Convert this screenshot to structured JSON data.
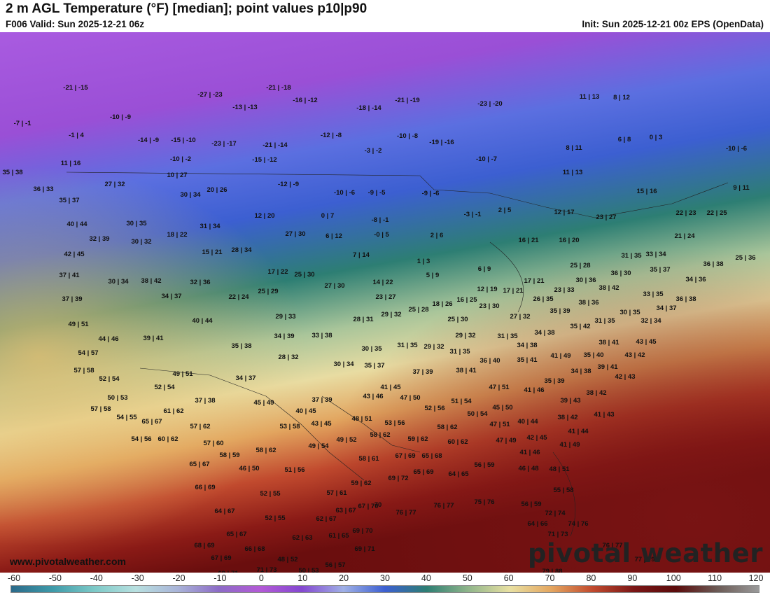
{
  "header": {
    "title": "2 m AGL Temperature (°F) [median]; point values p10|p90",
    "valid": "F006 Valid: Sun 2025-12-21 06z",
    "init": "Init: Sun 2025-12-21 00z EPS (OpenData)"
  },
  "map": {
    "website": "www.pivotalweather.com",
    "logo": "pivotal weather",
    "point_values": [
      [
        "-21 | -15",
        108,
        82
      ],
      [
        "-27 | -23",
        300,
        92
      ],
      [
        "-21 | -18",
        398,
        82
      ],
      [
        "-16 | -12",
        436,
        100
      ],
      [
        "-13 | -13",
        350,
        110
      ],
      [
        "-18 | -14",
        527,
        111
      ],
      [
        "-21 | -19",
        582,
        100
      ],
      [
        "-23 | -20",
        700,
        105
      ],
      [
        "11 | 13",
        842,
        95
      ],
      [
        "8 | 12",
        888,
        96
      ],
      [
        "-7 | -1",
        32,
        133
      ],
      [
        "-10 | -9",
        172,
        124
      ],
      [
        "-1 | 4",
        109,
        150
      ],
      [
        "-14 | -9",
        212,
        157
      ],
      [
        "-15 | -10",
        262,
        157
      ],
      [
        "-23 | -17",
        320,
        162
      ],
      [
        "-21 | -14",
        393,
        164
      ],
      [
        "-12 | -8",
        473,
        150
      ],
      [
        "-10 | -8",
        582,
        151
      ],
      [
        "-19 | -16",
        631,
        160
      ],
      [
        "6 | 8",
        892,
        156
      ],
      [
        "0 | 3",
        937,
        153
      ],
      [
        "-10 | -6",
        1052,
        169
      ],
      [
        "-3 | -2",
        533,
        172
      ],
      [
        "8 | 11",
        820,
        168
      ],
      [
        "-10 | -2",
        258,
        184
      ],
      [
        "-15 | -12",
        378,
        185
      ],
      [
        "-10 | -7",
        695,
        184
      ],
      [
        "11 | 16",
        101,
        190
      ],
      [
        "35 | 38",
        18,
        203
      ],
      [
        "10 | 27",
        253,
        207
      ],
      [
        "11 | 13",
        818,
        203
      ],
      [
        "27 | 32",
        164,
        220
      ],
      [
        "-12 | -9",
        412,
        220
      ],
      [
        "36 | 33",
        62,
        227
      ],
      [
        "20 | 26",
        310,
        228
      ],
      [
        "-10 | -6",
        492,
        232
      ],
      [
        "-9 | -5",
        538,
        232
      ],
      [
        "-9 | -6",
        615,
        233
      ],
      [
        "15 | 16",
        924,
        230
      ],
      [
        "9 | 11",
        1059,
        225
      ],
      [
        "30 | 34",
        272,
        235
      ],
      [
        "35 | 37",
        99,
        243
      ],
      [
        "2 | 5",
        721,
        257
      ],
      [
        "12 | 17",
        806,
        260
      ],
      [
        "22 | 23",
        980,
        261
      ],
      [
        "22 | 25",
        1024,
        261
      ],
      [
        "-3 | -1",
        675,
        263
      ],
      [
        "12 | 20",
        378,
        265
      ],
      [
        "0 | 7",
        468,
        265
      ],
      [
        "23 | 27",
        866,
        267
      ],
      [
        "-8 | -1",
        543,
        271
      ],
      [
        "40 | 44",
        110,
        277
      ],
      [
        "30 | 35",
        195,
        276
      ],
      [
        "31 | 34",
        300,
        280
      ],
      [
        "27 | 30",
        422,
        291
      ],
      [
        "6 | 12",
        477,
        294
      ],
      [
        "-0 | 5",
        545,
        292
      ],
      [
        "2 | 6",
        624,
        293
      ],
      [
        "21 | 24",
        978,
        294
      ],
      [
        "18 | 22",
        253,
        292
      ],
      [
        "32 | 39",
        142,
        298
      ],
      [
        "30 | 32",
        202,
        302
      ],
      [
        "16 | 21",
        755,
        300
      ],
      [
        "16 | 20",
        813,
        300
      ],
      [
        "15 | 21",
        303,
        317
      ],
      [
        "28 | 34",
        345,
        314
      ],
      [
        "7 | 14",
        516,
        321
      ],
      [
        "31 | 35",
        902,
        322
      ],
      [
        "33 | 34",
        937,
        320
      ],
      [
        "25 | 36",
        1065,
        325
      ],
      [
        "42 | 45",
        106,
        320
      ],
      [
        "1 | 3",
        605,
        330
      ],
      [
        "25 | 28",
        829,
        336
      ],
      [
        "36 | 38",
        1019,
        334
      ],
      [
        "17 | 22",
        397,
        345
      ],
      [
        "25 | 30",
        435,
        349
      ],
      [
        "6 | 9",
        692,
        341
      ],
      [
        "35 | 37",
        943,
        342
      ],
      [
        "36 | 30",
        887,
        347
      ],
      [
        "37 | 41",
        99,
        350
      ],
      [
        "5 | 9",
        618,
        350
      ],
      [
        "30 | 36",
        837,
        357
      ],
      [
        "34 | 36",
        994,
        356
      ],
      [
        "30 | 34",
        169,
        359
      ],
      [
        "38 | 42",
        216,
        358
      ],
      [
        "32 | 36",
        286,
        360
      ],
      [
        "14 | 22",
        547,
        360
      ],
      [
        "17 | 21",
        763,
        358
      ],
      [
        "27 | 30",
        478,
        365
      ],
      [
        "38 | 42",
        870,
        368
      ],
      [
        "12 | 19",
        696,
        370
      ],
      [
        "17 | 21",
        733,
        372
      ],
      [
        "23 | 33",
        806,
        371
      ],
      [
        "33 | 35",
        933,
        377
      ],
      [
        "22 | 24",
        341,
        381
      ],
      [
        "25 | 29",
        383,
        373
      ],
      [
        "34 | 37",
        245,
        380
      ],
      [
        "23 | 27",
        551,
        381
      ],
      [
        "26 | 35",
        776,
        384
      ],
      [
        "37 | 39",
        103,
        384
      ],
      [
        "36 | 38",
        980,
        384
      ],
      [
        "16 | 25",
        667,
        385
      ],
      [
        "18 | 26",
        632,
        391
      ],
      [
        "38 | 36",
        841,
        389
      ],
      [
        "23 | 30",
        699,
        394
      ],
      [
        "25 | 28",
        598,
        399
      ],
      [
        "35 | 39",
        800,
        401
      ],
      [
        "30 | 35",
        900,
        403
      ],
      [
        "34 | 37",
        952,
        397
      ],
      [
        "29 | 33",
        408,
        409
      ],
      [
        "29 | 32",
        559,
        406
      ],
      [
        "27 | 32",
        743,
        409
      ],
      [
        "28 | 31",
        519,
        413
      ],
      [
        "40 | 44",
        289,
        415
      ],
      [
        "25 | 30",
        654,
        413
      ],
      [
        "31 | 35",
        864,
        415
      ],
      [
        "32 | 34",
        930,
        415
      ],
      [
        "49 | 51",
        112,
        420
      ],
      [
        "35 | 42",
        829,
        423
      ],
      [
        "44 | 46",
        155,
        441
      ],
      [
        "39 | 41",
        219,
        440
      ],
      [
        "34 | 39",
        406,
        437
      ],
      [
        "33 | 38",
        460,
        436
      ],
      [
        "29 | 32",
        665,
        436
      ],
      [
        "31 | 35",
        725,
        437
      ],
      [
        "34 | 38",
        778,
        432
      ],
      [
        "38 | 41",
        870,
        446
      ],
      [
        "43 | 45",
        923,
        445
      ],
      [
        "35 | 38",
        345,
        451
      ],
      [
        "31 | 35",
        582,
        450
      ],
      [
        "29 | 32",
        620,
        452
      ],
      [
        "34 | 38",
        753,
        450
      ],
      [
        "30 | 35",
        531,
        455
      ],
      [
        "31 | 35",
        657,
        459
      ],
      [
        "54 | 57",
        126,
        461
      ],
      [
        "41 | 49",
        801,
        465
      ],
      [
        "35 | 40",
        848,
        464
      ],
      [
        "43 | 42",
        907,
        464
      ],
      [
        "28 | 32",
        412,
        467
      ],
      [
        "36 | 40",
        700,
        472
      ],
      [
        "35 | 41",
        753,
        471
      ],
      [
        "30 | 34",
        491,
        477
      ],
      [
        "35 | 37",
        535,
        479
      ],
      [
        "39 | 41",
        868,
        481
      ],
      [
        "57 | 58",
        120,
        486
      ],
      [
        "37 | 39",
        604,
        488
      ],
      [
        "38 | 41",
        666,
        486
      ],
      [
        "34 | 38",
        830,
        487
      ],
      [
        "49 | 51",
        261,
        491
      ],
      [
        "34 | 37",
        351,
        497
      ],
      [
        "42 | 43",
        893,
        495
      ],
      [
        "52 | 54",
        156,
        498
      ],
      [
        "35 | 39",
        792,
        501
      ],
      [
        "47 | 51",
        713,
        510
      ],
      [
        "52 | 54",
        235,
        510
      ],
      [
        "41 | 45",
        558,
        510
      ],
      [
        "41 | 46",
        763,
        514
      ],
      [
        "38 | 42",
        852,
        518
      ],
      [
        "43 | 46",
        533,
        523
      ],
      [
        "47 | 50",
        586,
        525
      ],
      [
        "37 | 39",
        460,
        528
      ],
      [
        "50 | 53",
        168,
        525
      ],
      [
        "37 | 38",
        293,
        529
      ],
      [
        "39 | 43",
        815,
        529
      ],
      [
        "51 | 54",
        659,
        530
      ],
      [
        "45 | 49",
        377,
        532
      ],
      [
        "52 | 56",
        621,
        540
      ],
      [
        "45 | 50",
        718,
        539
      ],
      [
        "57 | 58",
        144,
        541
      ],
      [
        "61 | 62",
        248,
        544
      ],
      [
        "40 | 45",
        437,
        544
      ],
      [
        "41 | 43",
        863,
        549
      ],
      [
        "50 | 54",
        682,
        548
      ],
      [
        "54 | 55",
        181,
        553
      ],
      [
        "38 | 42",
        811,
        553
      ],
      [
        "48 | 51",
        517,
        555
      ],
      [
        "65 | 67",
        217,
        559
      ],
      [
        "53 | 56",
        564,
        561
      ],
      [
        "53 | 58",
        414,
        566
      ],
      [
        "43 | 45",
        459,
        562
      ],
      [
        "57 | 62",
        286,
        566
      ],
      [
        "47 | 51",
        714,
        563
      ],
      [
        "40 | 44",
        754,
        559
      ],
      [
        "58 | 62",
        639,
        567
      ],
      [
        "41 | 44",
        826,
        573
      ],
      [
        "58 | 62",
        543,
        578
      ],
      [
        "59 | 62",
        597,
        584
      ],
      [
        "42 | 45",
        767,
        582
      ],
      [
        "54 | 56",
        202,
        584
      ],
      [
        "60 | 62",
        240,
        584
      ],
      [
        "49 | 52",
        495,
        585
      ],
      [
        "57 | 60",
        305,
        590
      ],
      [
        "60 | 62",
        654,
        588
      ],
      [
        "47 | 49",
        723,
        586
      ],
      [
        "41 | 49",
        814,
        592
      ],
      [
        "49 | 54",
        455,
        594
      ],
      [
        "58 | 62",
        380,
        600
      ],
      [
        "58 | 59",
        328,
        607
      ],
      [
        "41 | 46",
        757,
        603
      ],
      [
        "58 | 61",
        527,
        612
      ],
      [
        "67 | 69",
        579,
        608
      ],
      [
        "65 | 68",
        617,
        608
      ],
      [
        "65 | 67",
        285,
        620
      ],
      [
        "46 | 50",
        356,
        626
      ],
      [
        "51 | 56",
        421,
        628
      ],
      [
        "56 | 59",
        692,
        621
      ],
      [
        "46 | 48",
        755,
        626
      ],
      [
        "48 | 51",
        799,
        627
      ],
      [
        "64 | 65",
        655,
        634
      ],
      [
        "69 | 72",
        569,
        640
      ],
      [
        "65 | 69",
        605,
        631
      ],
      [
        "59 | 62",
        516,
        647
      ],
      [
        "66 | 69",
        293,
        653
      ],
      [
        "52 | 55",
        386,
        662
      ],
      [
        "57 | 61",
        481,
        661
      ],
      [
        "55 | 58",
        805,
        657
      ],
      [
        "70",
        540,
        678
      ],
      [
        "67 | 70",
        526,
        680
      ],
      [
        "63 | 67",
        494,
        686
      ],
      [
        "64 | 67",
        321,
        687
      ],
      [
        "76 | 77",
        580,
        689
      ],
      [
        "76 | 77",
        634,
        679
      ],
      [
        "75 | 76",
        692,
        674
      ],
      [
        "56 | 59",
        759,
        677
      ],
      [
        "72 | 74",
        793,
        690
      ],
      [
        "52 | 55",
        393,
        697
      ],
      [
        "62 | 67",
        466,
        698
      ],
      [
        "74 | 76",
        826,
        705
      ],
      [
        "64 | 66",
        768,
        705
      ],
      [
        "65 | 67",
        338,
        720
      ],
      [
        "61 | 65",
        484,
        722
      ],
      [
        "62 | 63",
        432,
        725
      ],
      [
        "71 | 73",
        797,
        720
      ],
      [
        "69 | 70",
        518,
        715
      ],
      [
        "68 | 69",
        292,
        736
      ],
      [
        "66 | 68",
        364,
        741
      ],
      [
        "69 | 71",
        521,
        741
      ],
      [
        "76 | 77",
        875,
        736
      ],
      [
        "67 | 69",
        316,
        754
      ],
      [
        "48 | 52",
        411,
        756
      ],
      [
        "77 | 79",
        921,
        756
      ],
      [
        "56 | 57",
        479,
        764
      ],
      [
        "69 | 71",
        326,
        776
      ],
      [
        "71 | 73",
        381,
        771
      ],
      [
        "50 | 53",
        441,
        772
      ],
      [
        "79 | 88",
        789,
        773
      ],
      [
        "69 | 70",
        511,
        779
      ],
      [
        "52 | 54",
        474,
        793
      ]
    ]
  },
  "colorbar": {
    "ticks": [
      "-60",
      "-50",
      "-40",
      "-30",
      "-20",
      "-10",
      "0",
      "10",
      "20",
      "30",
      "40",
      "50",
      "60",
      "70",
      "80",
      "90",
      "100",
      "110",
      "120"
    ],
    "colors": [
      "#2b6a8a",
      "#3e9aa9",
      "#7cc9c7",
      "#b8e0e0",
      "#a9b4d8",
      "#8c6bc6",
      "#b35ad6",
      "#8448d0",
      "#9fb0e6",
      "#3c5fd1",
      "#2d7e73",
      "#8fb58a",
      "#e8e0a2",
      "#e4a660",
      "#c14a2e",
      "#7a1616",
      "#5b0b0b",
      "#6b5a55",
      "#9a9a9a"
    ]
  }
}
